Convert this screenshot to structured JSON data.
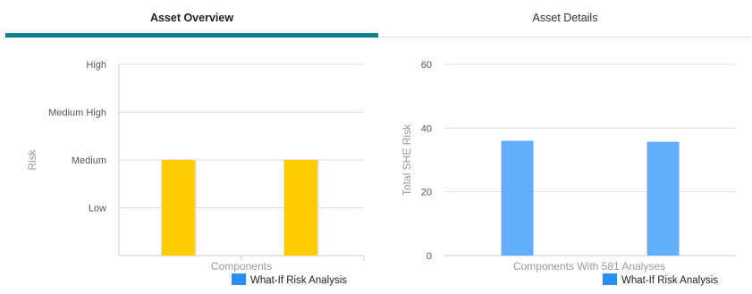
{
  "tabs": {
    "overview_label": "Asset Overview",
    "details_label": "Asset Details",
    "active": "overview"
  },
  "colors": {
    "tab_accent": "#117d92",
    "risk_bar": "#ffcc00",
    "she_bar": "#62aefc",
    "legend_swatch": "#2b8ef8",
    "gridline": "#dddddd",
    "axis_text": "#555555",
    "axis_title": "#999999"
  },
  "chart_data": [
    {
      "type": "bar",
      "categories": [
        "",
        ""
      ],
      "values": [
        "Medium",
        "Medium"
      ],
      "y_categories": [
        "Low",
        "Medium",
        "Medium High",
        "High"
      ],
      "title": "",
      "xlabel": "Components",
      "ylabel": "Risk",
      "legend": [
        "What-If Risk Analysis"
      ],
      "legend_position": "bottom-right",
      "grid": true
    },
    {
      "type": "bar",
      "categories": [
        "",
        ""
      ],
      "values": [
        36,
        35.7
      ],
      "ylim": [
        0,
        60
      ],
      "yticks": [
        0,
        20,
        40,
        60
      ],
      "title": "",
      "xlabel": "Components With 581 Analyses",
      "ylabel": "Total SHE Risk",
      "legend": [
        "What-If Risk Analysis"
      ],
      "legend_position": "bottom-right",
      "grid": true
    }
  ]
}
